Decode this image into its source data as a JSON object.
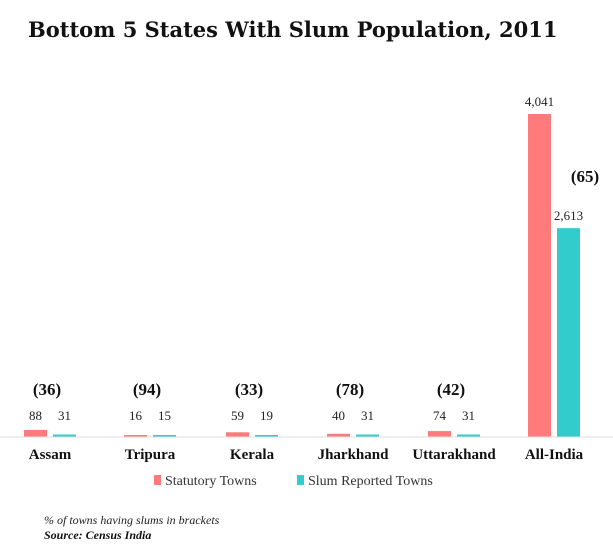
{
  "chart_data": {
    "type": "bar",
    "title": "Bottom 5 States With Slum Population, 2011",
    "categories": [
      "Assam",
      "Tripura",
      "Kerala",
      "Jharkhand",
      "Uttarakhand",
      "All-India"
    ],
    "series": [
      {
        "name": "Statutory Towns",
        "color": "#ff7b7b",
        "values": [
          88,
          16,
          59,
          40,
          74,
          4041
        ],
        "labels": [
          "88",
          "16",
          "59",
          "40",
          "74",
          "4,041"
        ]
      },
      {
        "name": "Slum Reported Towns",
        "color": "#33cccc",
        "values": [
          31,
          15,
          19,
          31,
          31,
          2613
        ],
        "labels": [
          "31",
          "15",
          "19",
          "31",
          "31",
          "2,613"
        ]
      }
    ],
    "annotations": [
      "(36)",
      "(94)",
      "(33)",
      "(78)",
      "(42)",
      "(65)"
    ],
    "ylim": [
      0,
      4041
    ],
    "grid": false,
    "legend_position": "bottom"
  },
  "notes": {
    "note": "% of towns having slums in brackets",
    "source": "Source: Census India"
  }
}
